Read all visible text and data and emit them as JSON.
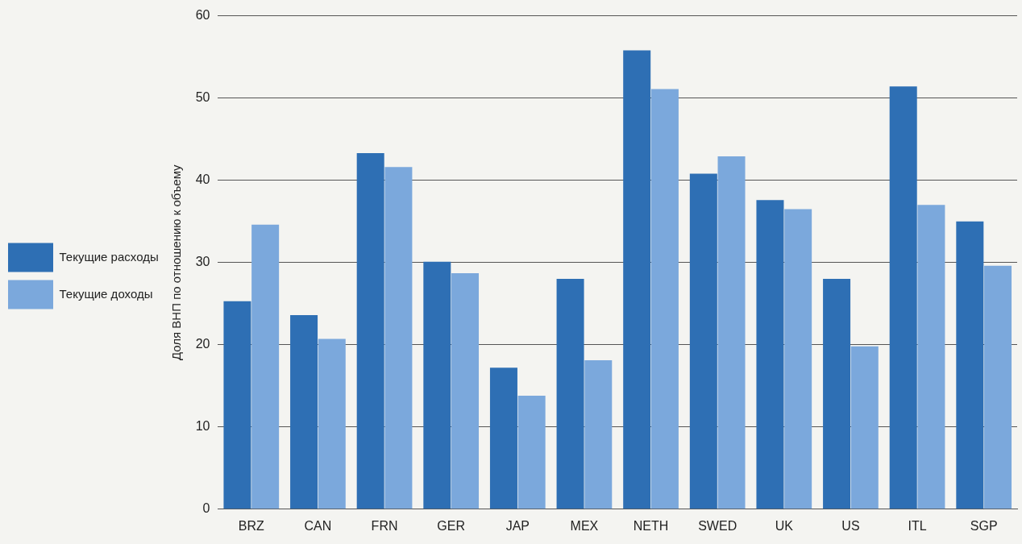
{
  "chart_data": {
    "type": "bar",
    "ylabel": "Доля ВНП по отношению к объему",
    "categories": [
      "BRZ",
      "CAN",
      "FRN",
      "GER",
      "JAP",
      "MEX",
      "NETH",
      "SWED",
      "UK",
      "US",
      "ITL",
      "SGP"
    ],
    "series": [
      {
        "name": "Текущие расходы",
        "color": "#2e6fb4",
        "values": [
          25.3,
          23.6,
          43.3,
          30.1,
          17.2,
          28.0,
          55.8,
          40.8,
          37.6,
          28.0,
          51.4,
          35.0
        ]
      },
      {
        "name": "Текущие доходы",
        "color": "#7ba8dc",
        "values": [
          34.6,
          20.7,
          41.6,
          28.7,
          13.8,
          18.1,
          51.1,
          42.9,
          36.5,
          19.8,
          37.0,
          29.6
        ]
      }
    ],
    "ylim": [
      0,
      60
    ],
    "yticks": [
      0,
      10,
      20,
      30,
      40,
      50,
      60
    ],
    "grid": "y",
    "legend": "left"
  }
}
